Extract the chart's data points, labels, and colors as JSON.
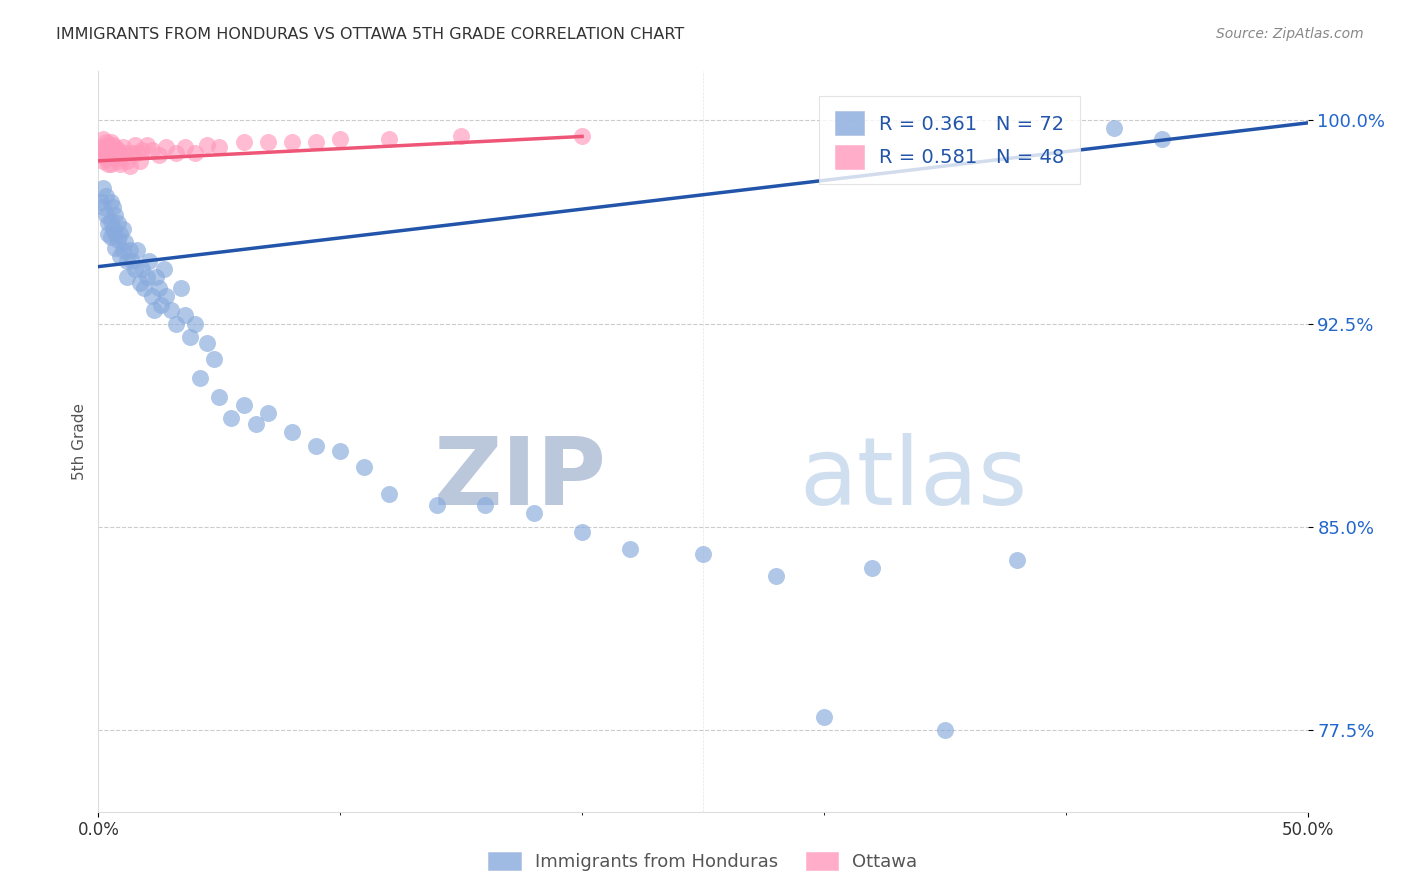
{
  "title": "IMMIGRANTS FROM HONDURAS VS OTTAWA 5TH GRADE CORRELATION CHART",
  "source": "Source: ZipAtlas.com",
  "ylabel": "5th Grade",
  "x_tick_labels": [
    "0.0%",
    "50.0%"
  ],
  "y_tick_labels": [
    "77.5%",
    "85.0%",
    "92.5%",
    "100.0%"
  ],
  "y_tick_values": [
    0.775,
    0.85,
    0.925,
    1.0
  ],
  "x_lim": [
    0.0,
    0.5
  ],
  "y_lim": [
    0.745,
    1.018
  ],
  "legend_entry_1": "R = 0.361   N = 72",
  "legend_entry_2": "R = 0.581   N = 48",
  "blue_color": "#88AADD",
  "pink_color": "#FF99BB",
  "blue_line_color": "#2255AA",
  "pink_line_color": "#EE5577",
  "watermark_zip": "ZIP",
  "watermark_atlas": "atlas",
  "watermark_color": "#D0E0F0",
  "blue_scatter_x": [
    0.001,
    0.002,
    0.002,
    0.003,
    0.003,
    0.004,
    0.004,
    0.005,
    0.005,
    0.005,
    0.006,
    0.006,
    0.007,
    0.007,
    0.007,
    0.008,
    0.008,
    0.009,
    0.009,
    0.01,
    0.01,
    0.011,
    0.012,
    0.012,
    0.013,
    0.014,
    0.015,
    0.016,
    0.017,
    0.018,
    0.019,
    0.02,
    0.021,
    0.022,
    0.023,
    0.024,
    0.025,
    0.026,
    0.027,
    0.028,
    0.03,
    0.032,
    0.034,
    0.036,
    0.038,
    0.04,
    0.042,
    0.045,
    0.048,
    0.05,
    0.055,
    0.06,
    0.065,
    0.07,
    0.08,
    0.09,
    0.1,
    0.11,
    0.12,
    0.14,
    0.16,
    0.18,
    0.2,
    0.22,
    0.25,
    0.28,
    0.3,
    0.32,
    0.35,
    0.38,
    0.42,
    0.44
  ],
  "blue_scatter_y": [
    0.97,
    0.975,
    0.968,
    0.972,
    0.965,
    0.962,
    0.958,
    0.97,
    0.963,
    0.957,
    0.968,
    0.96,
    0.965,
    0.958,
    0.953,
    0.962,
    0.956,
    0.958,
    0.95,
    0.96,
    0.952,
    0.955,
    0.948,
    0.942,
    0.952,
    0.948,
    0.945,
    0.952,
    0.94,
    0.945,
    0.938,
    0.942,
    0.948,
    0.935,
    0.93,
    0.942,
    0.938,
    0.932,
    0.945,
    0.935,
    0.93,
    0.925,
    0.938,
    0.928,
    0.92,
    0.925,
    0.905,
    0.918,
    0.912,
    0.898,
    0.89,
    0.895,
    0.888,
    0.892,
    0.885,
    0.88,
    0.878,
    0.872,
    0.862,
    0.858,
    0.858,
    0.855,
    0.848,
    0.842,
    0.84,
    0.832,
    0.78,
    0.835,
    0.775,
    0.838,
    0.997,
    0.993
  ],
  "pink_scatter_x": [
    0.001,
    0.001,
    0.002,
    0.002,
    0.002,
    0.003,
    0.003,
    0.003,
    0.004,
    0.004,
    0.004,
    0.005,
    0.005,
    0.005,
    0.006,
    0.006,
    0.007,
    0.007,
    0.008,
    0.008,
    0.009,
    0.009,
    0.01,
    0.011,
    0.012,
    0.013,
    0.014,
    0.015,
    0.016,
    0.017,
    0.018,
    0.02,
    0.022,
    0.025,
    0.028,
    0.032,
    0.036,
    0.04,
    0.045,
    0.05,
    0.06,
    0.07,
    0.08,
    0.09,
    0.1,
    0.12,
    0.15,
    0.2
  ],
  "pink_scatter_y": [
    0.99,
    0.987,
    0.993,
    0.988,
    0.985,
    0.992,
    0.989,
    0.986,
    0.991,
    0.988,
    0.984,
    0.992,
    0.988,
    0.984,
    0.991,
    0.987,
    0.99,
    0.986,
    0.989,
    0.985,
    0.988,
    0.984,
    0.99,
    0.988,
    0.985,
    0.983,
    0.988,
    0.991,
    0.988,
    0.985,
    0.989,
    0.991,
    0.989,
    0.987,
    0.99,
    0.988,
    0.99,
    0.988,
    0.991,
    0.99,
    0.992,
    0.992,
    0.992,
    0.992,
    0.993,
    0.993,
    0.994,
    0.994
  ],
  "blue_trend_x": [
    0.0,
    0.5
  ],
  "blue_trend_y": [
    0.946,
    0.999
  ],
  "pink_trend_x": [
    0.0,
    0.2
  ],
  "pink_trend_y": [
    0.985,
    0.994
  ],
  "grid_color": "#CCCCCC",
  "background_color": "#FFFFFF",
  "title_color": "#333333",
  "axis_label_color": "#555555",
  "tick_label_color_y": "#2266CC",
  "tick_label_color_x": "#333333"
}
